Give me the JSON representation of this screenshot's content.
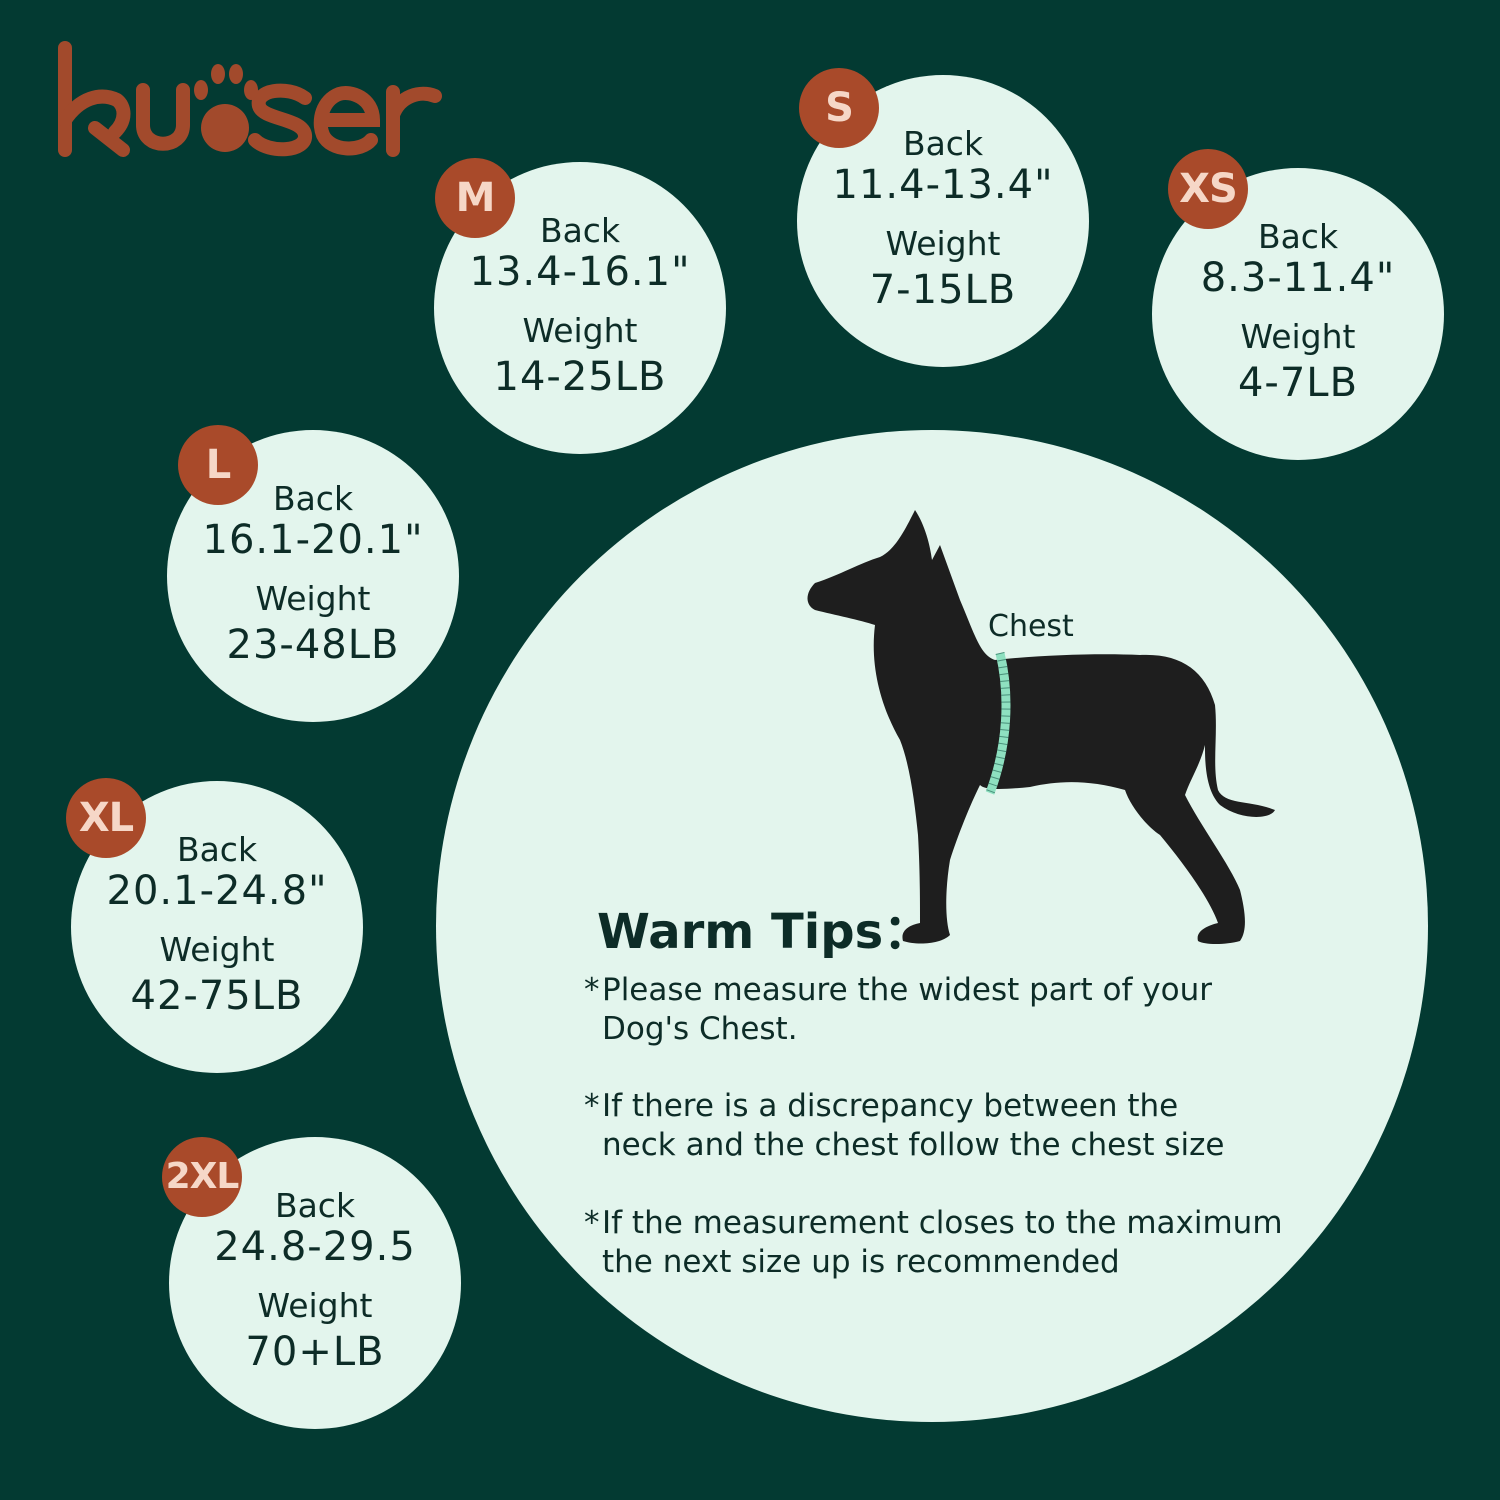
{
  "brand": {
    "name": "kuoser",
    "color": "#a24a2c"
  },
  "colors": {
    "background": "#033a32",
    "circle": "#e3f5ed",
    "badge": "#a94a2a",
    "text": "#0d2c27"
  },
  "sizes": [
    {
      "size": "M",
      "back_label": "Back",
      "back": "13.4-16.1\"",
      "weight_label": "Weight",
      "weight": "14-25LB"
    },
    {
      "size": "S",
      "back_label": "Back",
      "back": "11.4-13.4\"",
      "weight_label": "Weight",
      "weight": "7-15LB"
    },
    {
      "size": "XS",
      "back_label": "Back",
      "back": "8.3-11.4\"",
      "weight_label": "Weight",
      "weight": "4-7LB"
    },
    {
      "size": "L",
      "back_label": "Back",
      "back": "16.1-20.1\"",
      "weight_label": "Weight",
      "weight": "23-48LB"
    },
    {
      "size": "XL",
      "back_label": "Back",
      "back": "20.1-24.8\"",
      "weight_label": "Weight",
      "weight": "42-75LB"
    },
    {
      "size": "2XL",
      "back_label": "Back",
      "back": "24.8-29.5",
      "weight_label": "Weight",
      "weight": "70+LB"
    }
  ],
  "illustration": {
    "chest_label": "Chest",
    "icon": "dog-silhouette-icon"
  },
  "tips": {
    "title": "Warm Tips：",
    "items": [
      {
        "star": "*",
        "line1": "Please measure the widest part of your",
        "line2": "Dog's Chest."
      },
      {
        "star": "*",
        "line1": "If there is a discrepancy between the",
        "line2": "neck and the chest follow the chest size"
      },
      {
        "star": "*",
        "line1": "If the measurement closes to the maximum",
        "line2": "the next size up is recommended"
      }
    ]
  }
}
